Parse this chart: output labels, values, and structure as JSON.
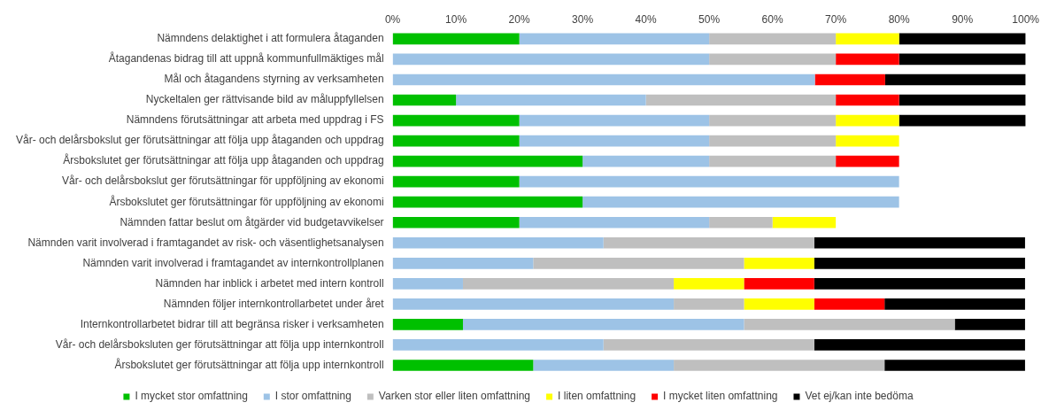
{
  "chart_data": {
    "type": "bar",
    "orientation": "horizontal",
    "stacked": true,
    "grid": false,
    "legend": "bottom",
    "marker": "square",
    "categories": [
      "Nämndens delaktighet i att formulera åtaganden",
      "Åtagandenas bidrag till att uppnå kommunfullmäktiges mål",
      "Mål och åtagandens styrning av verksamheten",
      "Nyckeltalen ger rättvisande bild av måluppfyllelsen",
      "Nämndens förutsättningar att arbeta med uppdrag i FS",
      "Vår- och delårsbokslut ger förutsättningar att följa upp åtaganden och uppdrag",
      "Årsbokslutet ger förutsättningar att följa upp åtaganden och uppdrag",
      "Vår- och delårsbokslut ger förutsättningar för uppföljning av ekonomi",
      "Årsbokslutet ger förutsättningar för uppföljning av ekonomi",
      "Nämnden fattar beslut om åtgärder vid budgetavvikelser",
      "Nämnden varit involverad i framtagandet av risk- och väsentlighetsanalysen",
      "Nämnden varit involverad i framtagandet av internkontrollplanen",
      "Nämnden har inblick i arbetet med intern kontroll",
      "Nämnden följer internkontrollarbetet under året",
      "Internkontrollarbetet bidrar till att begränsa risker i verksamheten",
      "Vår- och delårsboksluten ger förutsättningar att följa upp internkontroll",
      "Årsbokslutet ger förutsättningar att följa upp internkontroll"
    ],
    "series": [
      {
        "name": "I mycket stor omfattning",
        "color": "#00c000",
        "values": [
          20,
          0,
          0,
          10,
          20,
          20,
          30,
          20,
          30,
          20,
          0,
          0,
          0,
          0,
          11.1,
          0,
          22.2
        ]
      },
      {
        "name": "I stor omfattning",
        "color": "#9dc3e6",
        "values": [
          30,
          50,
          66.7,
          30,
          30,
          30,
          20,
          60,
          50,
          30,
          33.3,
          22.2,
          11.1,
          44.4,
          44.4,
          33.3,
          22.2
        ]
      },
      {
        "name": "Varken stor eller liten omfattning",
        "color": "#bfbfbf",
        "values": [
          20,
          20,
          0,
          30,
          20,
          20,
          20,
          0,
          0,
          10,
          33.3,
          33.3,
          33.3,
          11.1,
          33.3,
          33.3,
          33.3
        ]
      },
      {
        "name": "I liten omfattning",
        "color": "#ffff00",
        "values": [
          10,
          0,
          0,
          0,
          10,
          10,
          0,
          0,
          0,
          10,
          0,
          11.1,
          11.1,
          11.1,
          0,
          0,
          0
        ]
      },
      {
        "name": "I mycket liten omfattning",
        "color": "#ff0000",
        "values": [
          0,
          10,
          11.1,
          10,
          0,
          0,
          10,
          0,
          0,
          0,
          0,
          0,
          11.1,
          11.1,
          0,
          0,
          0
        ]
      },
      {
        "name": "Vet ej/kan inte bedöma",
        "color": "#000000",
        "values": [
          20,
          20,
          22.2,
          20,
          20,
          0,
          0,
          0,
          0,
          0,
          33.3,
          33.3,
          33.3,
          22.2,
          11.1,
          33.3,
          22.2
        ]
      }
    ],
    "xlim": [
      0,
      100
    ],
    "xticks": [
      {
        "value": 0,
        "label": "0%"
      },
      {
        "value": 10,
        "label": "10%"
      },
      {
        "value": 20,
        "label": "20%"
      },
      {
        "value": 30,
        "label": "30%"
      },
      {
        "value": 40,
        "label": "40%"
      },
      {
        "value": 50,
        "label": "50%"
      },
      {
        "value": 60,
        "label": "60%"
      },
      {
        "value": 70,
        "label": "70%"
      },
      {
        "value": 80,
        "label": "80%"
      },
      {
        "value": 90,
        "label": "90%"
      },
      {
        "value": 100,
        "label": "100%"
      }
    ]
  }
}
